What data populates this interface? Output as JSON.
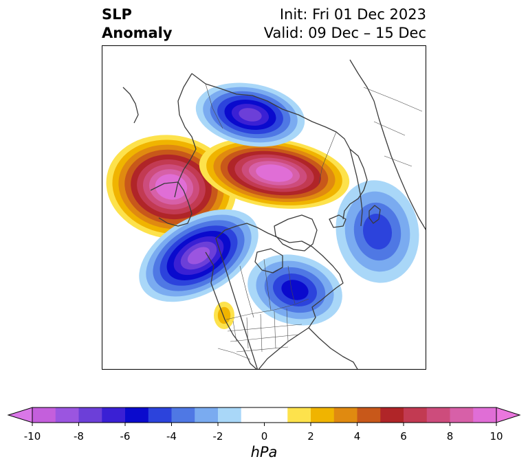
{
  "title": {
    "left_line1": "SLP",
    "left_line2": "Anomaly",
    "right_line1": "Init: Fri 01 Dec 2023",
    "right_line2": "Valid: 09 Dec – 15 Dec"
  },
  "colorbar": {
    "unit": "hPa",
    "min": -10,
    "max": 10,
    "step": 1,
    "extend": "both",
    "ticks": [
      {
        "value": -10,
        "label": "-10"
      },
      {
        "value": -8,
        "label": "-8"
      },
      {
        "value": -6,
        "label": "-6"
      },
      {
        "value": -4,
        "label": "-4"
      },
      {
        "value": -2,
        "label": "-2"
      },
      {
        "value": 0,
        "label": "0"
      },
      {
        "value": 2,
        "label": "2"
      },
      {
        "value": 4,
        "label": "4"
      },
      {
        "value": 6,
        "label": "6"
      },
      {
        "value": 8,
        "label": "8"
      },
      {
        "value": 10,
        "label": "10"
      }
    ],
    "colors": [
      "#c45fdc",
      "#9b55e0",
      "#6c3fd8",
      "#3a20d4",
      "#0a0acd",
      "#2c43dc",
      "#4f78e4",
      "#7aabf0",
      "#a9d7f8",
      "#ffffff",
      "#ffffff",
      "#fde24c",
      "#f0b400",
      "#e08a10",
      "#c8581a",
      "#b02528",
      "#c23a52",
      "#cd4c7c",
      "#d760a8",
      "#e06ed6"
    ],
    "lower_extend_color": "#da77e8",
    "upper_extend_color": "#ea77de"
  },
  "map": {
    "projection": "polar stereographic",
    "anomalies": [
      {
        "name": "north-pacific-high",
        "sign": "positive",
        "peak": 10
      },
      {
        "name": "arctic-high",
        "sign": "positive",
        "peak": 10
      },
      {
        "name": "eurasia-low",
        "sign": "negative",
        "peak": -7
      },
      {
        "name": "gulf-of-alaska-low",
        "sign": "negative",
        "peak": -8
      },
      {
        "name": "eastern-north-america-low",
        "sign": "negative",
        "peak": -5
      },
      {
        "name": "north-atlantic-low",
        "sign": "negative",
        "peak": -4
      },
      {
        "name": "southwest-us-high",
        "sign": "positive",
        "peak": 2
      }
    ]
  }
}
